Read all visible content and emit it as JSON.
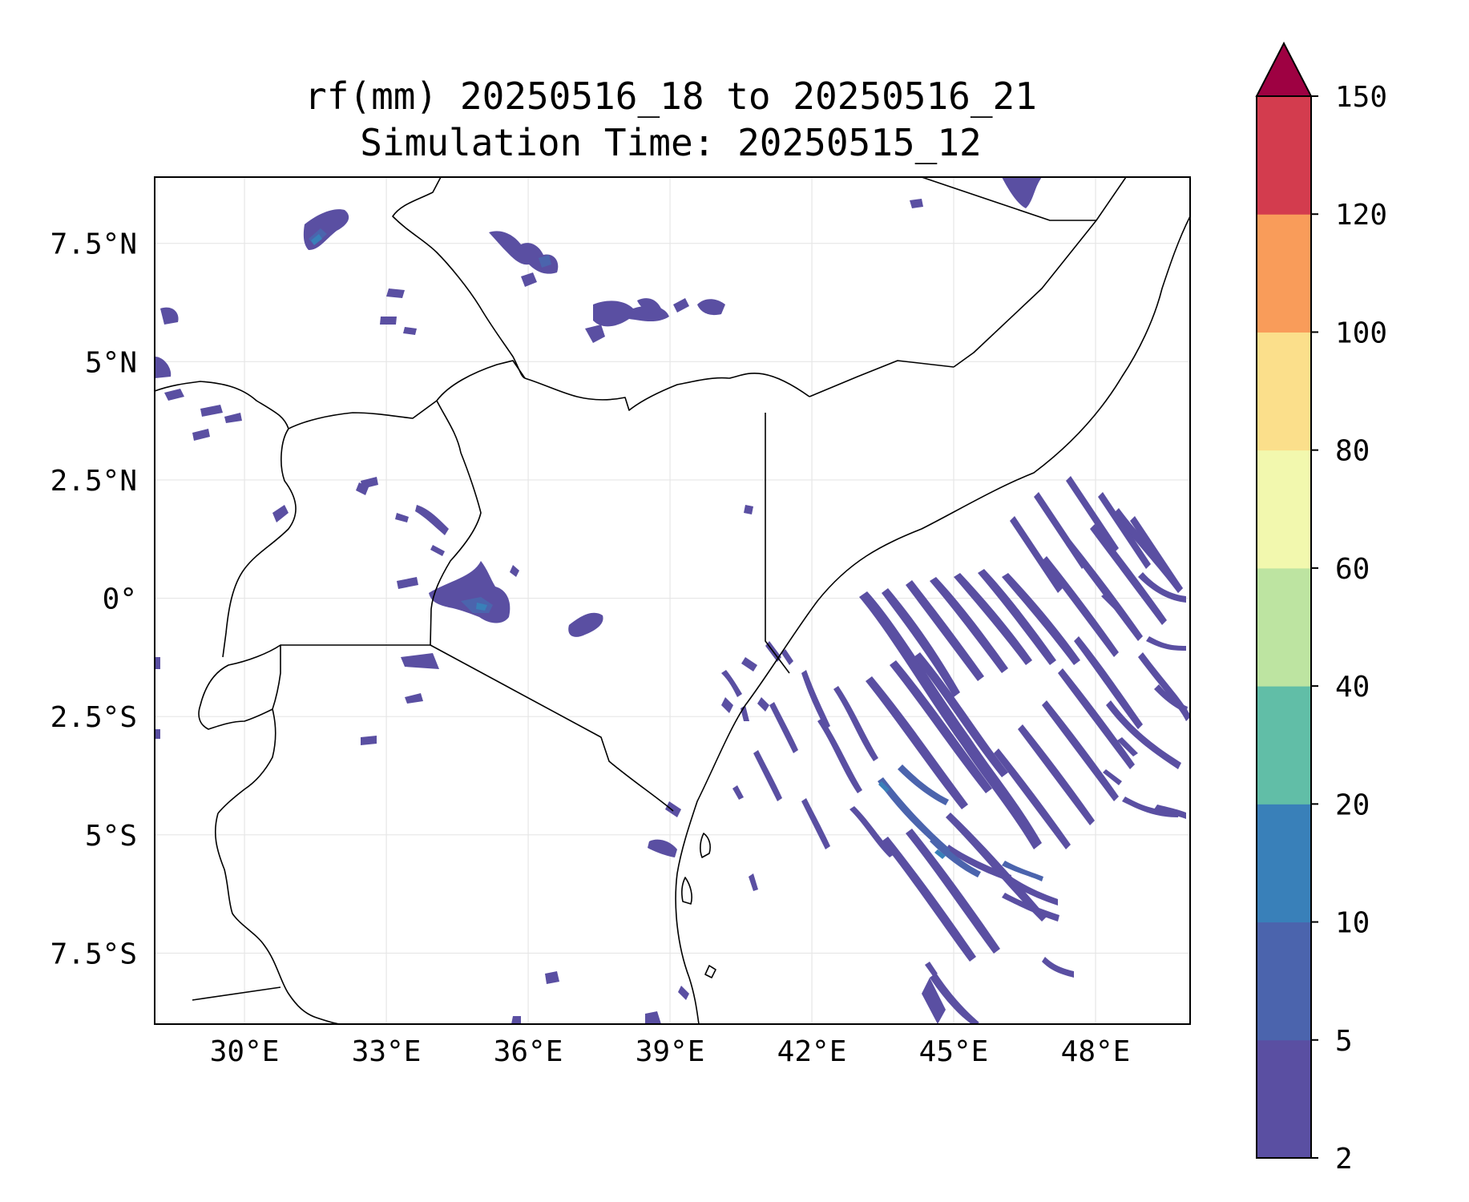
{
  "title": {
    "line1": "rf(mm) 20250516_18 to 20250516_21",
    "line2": "Simulation Time: 20250515_12"
  },
  "map": {
    "lon_range": [
      28.1,
      50.0
    ],
    "lat_range": [
      -9.0,
      8.9
    ],
    "lon_ticks": [
      30,
      33,
      36,
      39,
      42,
      45,
      48
    ],
    "lon_tick_labels": [
      "30°E",
      "33°E",
      "36°E",
      "39°E",
      "42°E",
      "45°E",
      "48°E"
    ],
    "lat_ticks": [
      7.5,
      5,
      2.5,
      0,
      -2.5,
      -5,
      -7.5
    ],
    "lat_tick_labels": [
      "7.5°N",
      "5°N",
      "2.5°N",
      "0°",
      "2.5°S",
      "5°S",
      "7.5°S"
    ],
    "gridlines": true
  },
  "colorbar": {
    "levels": [
      2,
      5,
      10,
      20,
      40,
      60,
      80,
      100,
      120,
      150
    ],
    "level_labels": [
      "2",
      "5",
      "10",
      "20",
      "40",
      "60",
      "80",
      "100",
      "120",
      "150"
    ],
    "colors": [
      "#5a4fa2",
      "#4b64ad",
      "#3980b9",
      "#61bea7",
      "#bde4a1",
      "#f2f8ae",
      "#fbdf8b",
      "#f99c5a",
      "#d33c4e"
    ],
    "extend_color": "#9e0142",
    "extend": "max"
  }
}
